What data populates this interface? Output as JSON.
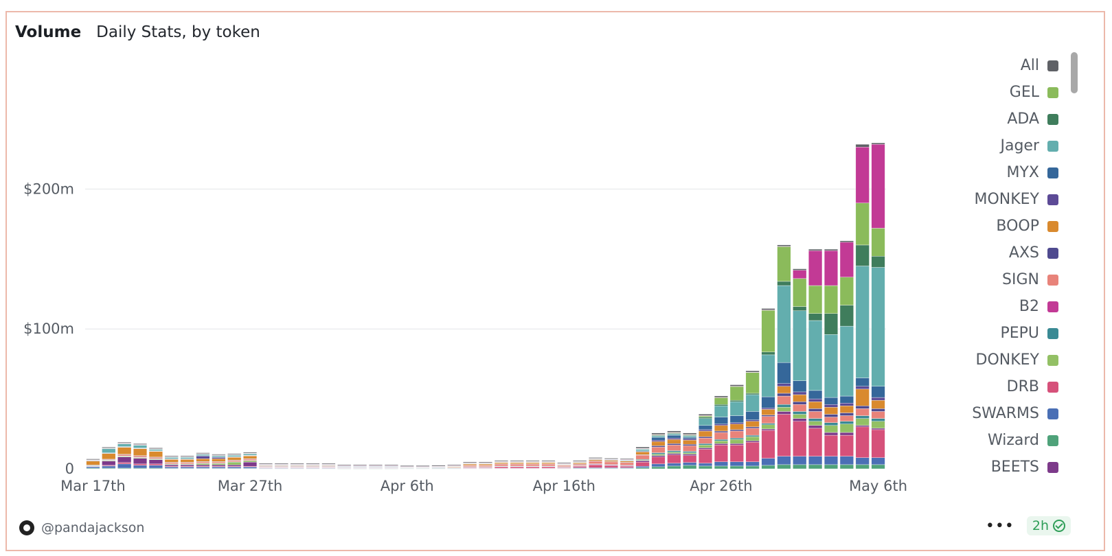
{
  "header": {
    "title": "Volume",
    "subtitle": "Daily Stats, by token"
  },
  "footer": {
    "user": "@pandajackson",
    "more": "•••",
    "freshness": "2h"
  },
  "chart_data": {
    "type": "bar",
    "stacked": true,
    "title": "Volume",
    "subtitle": "Daily Stats, by token",
    "xlabel": "",
    "ylabel": "",
    "ylim": [
      0,
      290
    ],
    "y_ticks": [
      {
        "value": 0,
        "label": "0"
      },
      {
        "value": 100,
        "label": "$100m"
      },
      {
        "value": 200,
        "label": "$200m"
      }
    ],
    "x_tick_labels": [
      "Mar 17th",
      "Mar 27th",
      "Apr 6th",
      "Apr 16th",
      "Apr 26th",
      "May 6th"
    ],
    "x_tick_every": 10,
    "categories": [
      "Mar 17",
      "Mar 18",
      "Mar 19",
      "Mar 20",
      "Mar 21",
      "Mar 22",
      "Mar 23",
      "Mar 24",
      "Mar 25",
      "Mar 26",
      "Mar 27",
      "Mar 28",
      "Mar 29",
      "Mar 30",
      "Mar 31",
      "Apr 1",
      "Apr 2",
      "Apr 3",
      "Apr 4",
      "Apr 5",
      "Apr 6",
      "Apr 7",
      "Apr 8",
      "Apr 9",
      "Apr 10",
      "Apr 11",
      "Apr 12",
      "Apr 13",
      "Apr 14",
      "Apr 15",
      "Apr 16",
      "Apr 17",
      "Apr 18",
      "Apr 19",
      "Apr 20",
      "Apr 21",
      "Apr 22",
      "Apr 23",
      "Apr 24",
      "Apr 25",
      "Apr 26",
      "Apr 27",
      "Apr 28",
      "Apr 29",
      "Apr 30",
      "May 1",
      "May 2",
      "May 3",
      "May 4",
      "May 5",
      "May 6"
    ],
    "grid": true,
    "legend_position": "right",
    "legend": [
      {
        "name": "All",
        "color": "#5f6166"
      },
      {
        "name": "GEL",
        "color": "#8bbb5b"
      },
      {
        "name": "ADA",
        "color": "#3f7d5c"
      },
      {
        "name": "Jager",
        "color": "#63aeae"
      },
      {
        "name": "MYX",
        "color": "#35679a"
      },
      {
        "name": "MONKEY",
        "color": "#5c4a96"
      },
      {
        "name": "BOOP",
        "color": "#d98a2e"
      },
      {
        "name": "AXS",
        "color": "#4f4a8f"
      },
      {
        "name": "SIGN",
        "color": "#e8837a"
      },
      {
        "name": "B2",
        "color": "#c23a95"
      },
      {
        "name": "PEPU",
        "color": "#3a8a94"
      },
      {
        "name": "DONKEY",
        "color": "#93c065"
      },
      {
        "name": "DRB",
        "color": "#d6517a"
      },
      {
        "name": "SWARMS",
        "color": "#4a6fb5"
      },
      {
        "name": "Wizard",
        "color": "#4fa27a"
      },
      {
        "name": "BEETS",
        "color": "#7d3a8a"
      }
    ],
    "series": [
      {
        "name": "Wizard",
        "color": "#4fa27a",
        "values": [
          0.5,
          0.5,
          0.5,
          0.5,
          0.5,
          0.3,
          0.3,
          0.3,
          0.3,
          0.3,
          0.3,
          0.2,
          0.2,
          0.2,
          0.2,
          0.2,
          0.1,
          0.1,
          0.1,
          0.1,
          0.1,
          0.1,
          0.1,
          0.1,
          0.2,
          0.2,
          0.2,
          0.2,
          0.2,
          0.2,
          0.2,
          0.3,
          0.3,
          0.3,
          0.3,
          0.8,
          1.5,
          2,
          2.5,
          2,
          2,
          2,
          2,
          2.5,
          3,
          3,
          3,
          3,
          3,
          3,
          3
        ]
      },
      {
        "name": "SWARMS",
        "color": "#4a6fb5",
        "values": [
          1,
          1.5,
          3,
          2,
          2,
          1,
          1,
          1,
          1,
          1,
          1,
          0.3,
          0.3,
          0.3,
          0.3,
          0.3,
          0.2,
          0.2,
          0.2,
          0.2,
          0.1,
          0.1,
          0.1,
          0.1,
          0.2,
          0.2,
          0.2,
          0.2,
          0.2,
          0.2,
          0.2,
          0.5,
          0.5,
          0.5,
          0.5,
          1,
          2,
          2,
          2,
          2,
          3,
          3,
          3,
          5,
          6,
          6,
          6,
          6,
          6,
          5,
          5
        ]
      },
      {
        "name": "DRB",
        "color": "#d6517a",
        "values": [
          0.3,
          0.5,
          1,
          1,
          1,
          0.5,
          0.5,
          0.5,
          0.5,
          0.5,
          0.5,
          0.3,
          0.3,
          0.3,
          0.3,
          0.3,
          0.2,
          0.2,
          0.2,
          0.2,
          0.1,
          0.1,
          0.1,
          0.1,
          0.5,
          0.5,
          1,
          1,
          1,
          1,
          0.5,
          1,
          2,
          1.5,
          1,
          3,
          5,
          6,
          5,
          10,
          12,
          12,
          14,
          20,
          30,
          25,
          20,
          15,
          15,
          22,
          20
        ]
      },
      {
        "name": "BEETS",
        "color": "#7d3a8a",
        "values": [
          0.2,
          3,
          4,
          4,
          3,
          1,
          1,
          1,
          1,
          1,
          3,
          0.3,
          0.3,
          0.3,
          0.3,
          0.3,
          0.2,
          0.2,
          0.2,
          0.2,
          0.1,
          0.1,
          0.1,
          0.1,
          0.3,
          0.3,
          0.3,
          0.3,
          0.3,
          0.3,
          0.3,
          0.3,
          0.5,
          0.5,
          0.5,
          1,
          1,
          1,
          1,
          1,
          1,
          1,
          1,
          1,
          2,
          2,
          2,
          2,
          2,
          1,
          1
        ]
      },
      {
        "name": "DONKEY",
        "color": "#93c065",
        "values": [
          0.2,
          0.5,
          0.5,
          0.5,
          0.5,
          0.5,
          0.5,
          1,
          1,
          2,
          1,
          0.2,
          0.2,
          0.2,
          0.2,
          0.2,
          0.1,
          0.1,
          0.1,
          0.1,
          0.1,
          0.1,
          0.1,
          0.1,
          0.2,
          0.2,
          0.2,
          0.2,
          0.2,
          0.2,
          0.2,
          0.2,
          0.2,
          0.2,
          0.2,
          0.5,
          1,
          1,
          1,
          2,
          2,
          3,
          3,
          3,
          3,
          3,
          3,
          5,
          6,
          5,
          5
        ]
      },
      {
        "name": "PEPU",
        "color": "#3a8a94",
        "values": [
          0.1,
          0.2,
          0.2,
          0.2,
          0.2,
          0.2,
          0.2,
          0.2,
          0.2,
          0.2,
          0.2,
          0.1,
          0.1,
          0.1,
          0.1,
          0.1,
          0.1,
          0.1,
          0.1,
          0.1,
          0.1,
          0.1,
          0.1,
          0.1,
          0.1,
          0.1,
          0.1,
          0.1,
          0.1,
          0.1,
          0.1,
          0.1,
          0.1,
          0.1,
          0.1,
          0.5,
          1,
          1,
          1,
          1,
          1,
          1,
          1,
          1,
          2,
          2,
          2,
          2,
          2,
          2,
          2
        ]
      },
      {
        "name": "SIGN",
        "color": "#e8837a",
        "values": [
          0.3,
          0.5,
          1,
          1,
          1,
          1,
          1,
          1,
          1,
          1,
          1,
          0.5,
          0.5,
          0.5,
          0.5,
          0.5,
          0.3,
          0.3,
          0.3,
          0.3,
          0.2,
          0.2,
          0.3,
          0.5,
          1,
          1,
          1.5,
          1.5,
          1.5,
          1.5,
          1,
          1,
          2,
          2,
          2,
          3,
          4,
          4,
          4,
          4,
          5,
          5,
          5,
          5,
          6,
          5,
          5,
          4,
          4,
          5,
          5
        ]
      },
      {
        "name": "AXS",
        "color": "#4f4a8f",
        "values": [
          0.1,
          0.2,
          0.2,
          0.2,
          0.2,
          0.2,
          0.2,
          0.2,
          0.2,
          0.2,
          0.2,
          0.1,
          0.1,
          0.1,
          0.1,
          0.1,
          0.1,
          0.1,
          0.1,
          0.1,
          0.1,
          0.1,
          0.1,
          0.1,
          0.1,
          0.1,
          0.1,
          0.1,
          0.1,
          0.1,
          0.1,
          0.1,
          0.1,
          0.1,
          0.1,
          0.3,
          1,
          1,
          1,
          1,
          1,
          1,
          1,
          1,
          2,
          2,
          2,
          2,
          2,
          2,
          2
        ]
      },
      {
        "name": "BOOP",
        "color": "#d98a2e",
        "values": [
          3,
          4,
          5,
          5,
          4,
          2,
          2,
          2,
          2,
          2,
          2,
          0.5,
          0.5,
          0.5,
          0.5,
          0.5,
          0.3,
          0.3,
          0.3,
          0.3,
          0.2,
          0.2,
          0.3,
          0.5,
          1,
          1,
          1,
          1,
          1,
          1,
          0.5,
          1,
          1,
          1,
          1,
          2,
          3,
          3,
          3,
          4,
          4,
          4,
          4,
          4,
          5,
          5,
          5,
          5,
          5,
          12,
          6
        ]
      },
      {
        "name": "MONKEY",
        "color": "#5c4a96",
        "values": [
          0.1,
          0.3,
          0.3,
          0.3,
          0.3,
          0.3,
          0.3,
          2,
          1,
          0.3,
          0.3,
          0.1,
          0.1,
          0.1,
          0.1,
          0.1,
          0.1,
          0.1,
          0.1,
          0.1,
          0.1,
          0.1,
          0.1,
          0.1,
          0.1,
          0.1,
          0.1,
          0.1,
          0.1,
          0.1,
          0.1,
          0.1,
          0.1,
          0.1,
          0.1,
          0.3,
          1,
          1,
          1,
          1,
          1,
          1,
          1,
          1,
          2,
          2,
          2,
          2,
          2,
          2,
          2
        ]
      },
      {
        "name": "MYX",
        "color": "#35679a",
        "values": [
          0.1,
          0.2,
          0.2,
          0.2,
          0.2,
          0.2,
          0.2,
          0.2,
          0.2,
          0.2,
          0.2,
          0.1,
          0.1,
          0.1,
          0.1,
          0.1,
          0.1,
          0.1,
          0.1,
          0.1,
          0.1,
          0.1,
          0.1,
          0.1,
          0.1,
          0.1,
          0.1,
          0.1,
          0.1,
          0.1,
          0.1,
          0.1,
          0.1,
          0.1,
          0.1,
          0.5,
          2,
          2,
          1,
          3,
          5,
          5,
          6,
          8,
          15,
          8,
          6,
          5,
          5,
          6,
          8
        ]
      },
      {
        "name": "Jager",
        "color": "#63aeae",
        "values": [
          0.3,
          3,
          2,
          2,
          1,
          1,
          1,
          1,
          1,
          1,
          1,
          0.3,
          0.3,
          0.3,
          0.3,
          0.3,
          0.2,
          0.2,
          0.2,
          0.2,
          0.1,
          0.1,
          0.1,
          0.1,
          0.2,
          0.2,
          0.2,
          0.2,
          0.2,
          0.2,
          0.2,
          0.3,
          0.3,
          0.3,
          0.5,
          1,
          1,
          1,
          1,
          5,
          8,
          10,
          12,
          30,
          55,
          50,
          50,
          45,
          50,
          80,
          85
        ]
      },
      {
        "name": "ADA",
        "color": "#3f7d5c",
        "values": [
          0.1,
          0.2,
          0.2,
          0.2,
          0.2,
          0.2,
          0.2,
          0.2,
          0.2,
          0.2,
          0.2,
          0.1,
          0.1,
          0.1,
          0.1,
          0.1,
          0.1,
          0.1,
          0.1,
          0.1,
          0.1,
          0.1,
          0.1,
          0.1,
          0.1,
          0.1,
          0.1,
          0.1,
          0.1,
          0.1,
          0.1,
          0.1,
          0.1,
          0.1,
          0.1,
          0.3,
          0.5,
          0.5,
          0.5,
          1,
          1,
          1,
          1,
          2,
          3,
          3,
          5,
          15,
          15,
          15,
          8
        ]
      },
      {
        "name": "GEL",
        "color": "#8bbb5b",
        "values": [
          0.1,
          0.2,
          0.2,
          0.2,
          0.2,
          0.2,
          0.2,
          0.2,
          0.2,
          0.2,
          0.2,
          0.1,
          0.1,
          0.1,
          0.1,
          0.1,
          0.1,
          0.1,
          0.1,
          0.1,
          0.1,
          0.1,
          0.1,
          0.1,
          0.1,
          0.1,
          0.1,
          0.1,
          0.1,
          0.1,
          0.1,
          0.1,
          0.1,
          0.1,
          0.1,
          0.3,
          0.5,
          0.5,
          0.5,
          1,
          5,
          10,
          15,
          30,
          25,
          20,
          20,
          20,
          20,
          30,
          20
        ]
      },
      {
        "name": "B2",
        "color": "#c23a95",
        "values": [
          0.1,
          0.1,
          0.1,
          0.1,
          0.1,
          0.1,
          0.1,
          0.1,
          0.1,
          0.1,
          0.1,
          0.1,
          0.1,
          0.1,
          0.1,
          0.1,
          0.1,
          0.1,
          0.1,
          0.1,
          0.1,
          0.1,
          0.1,
          0.1,
          0.1,
          0.1,
          0.1,
          0.1,
          0.1,
          0.1,
          0.1,
          0.1,
          0.1,
          0.1,
          0.1,
          0.1,
          0.1,
          0.1,
          0.1,
          0.1,
          0.1,
          0.1,
          0.1,
          0.1,
          0.1,
          6,
          25,
          25,
          25,
          40,
          60
        ]
      },
      {
        "name": "All",
        "color": "#5f6166",
        "values": [
          0.6,
          0.6,
          0.6,
          0.6,
          0.6,
          0.6,
          0.6,
          0.6,
          0.6,
          0.6,
          0.6,
          0.6,
          0.6,
          0.6,
          0.6,
          0.6,
          0.6,
          0.6,
          0.6,
          0.6,
          0.6,
          0.6,
          0.6,
          0.6,
          0.6,
          0.6,
          0.6,
          0.6,
          0.6,
          0.6,
          0.6,
          0.6,
          0.6,
          0.6,
          0.6,
          1,
          1,
          1,
          1,
          1,
          1,
          1,
          1,
          1,
          1,
          1,
          1,
          1,
          1,
          2,
          1
        ]
      }
    ]
  }
}
